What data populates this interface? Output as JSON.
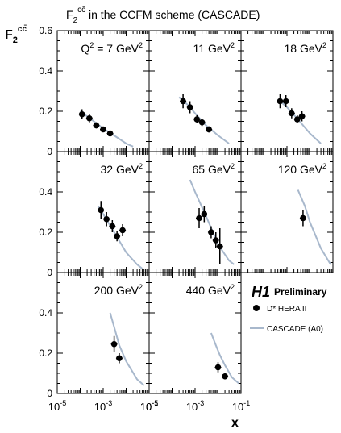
{
  "chart_data": {
    "type": "scatter",
    "title": "F2cc̄ in the CCFM scheme (CASCADE)",
    "title_parts": {
      "main": "F",
      "sub": "2",
      "sup": "cc̄",
      "rest": " in the CCFM scheme (CASCADE)"
    },
    "ylabel": {
      "main": "F",
      "sub": "2",
      "sup": "cc̄"
    },
    "xlabel": "x",
    "x_scale": "log",
    "xlim": [
      1e-05,
      0.1
    ],
    "ylim": [
      0,
      0.6
    ],
    "y_ticks": [
      "0",
      "0.2",
      "0.4",
      "0.6"
    ],
    "x_tick_labels": [
      {
        "base": "10",
        "exp": "-5",
        "value": 1e-05
      },
      {
        "base": "10",
        "exp": "-3",
        "value": 0.001
      },
      {
        "base": "10",
        "exp": "-1",
        "value": 0.1
      }
    ],
    "legend": {
      "logo": "H1",
      "status": "Preliminary",
      "data_label": "D* HERA II",
      "model_label": "CASCADE (A0)",
      "model_color": "#a8b8cc"
    },
    "panels": [
      {
        "q2": "Q² = 7 GeV²",
        "label_parts": [
          "Q",
          "2",
          " = 7 GeV",
          "2"
        ],
        "data": [
          {
            "x": 0.00012,
            "y": 0.185,
            "err": 0.025
          },
          {
            "x": 0.00025,
            "y": 0.165,
            "err": 0.02
          },
          {
            "x": 0.0005,
            "y": 0.13,
            "err": 0.015
          },
          {
            "x": 0.001,
            "y": 0.11,
            "err": 0.013
          },
          {
            "x": 0.002,
            "y": 0.09,
            "err": 0.012
          }
        ],
        "model": [
          {
            "x": 0.0001,
            "y": 0.2
          },
          {
            "x": 0.0003,
            "y": 0.16
          },
          {
            "x": 0.001,
            "y": 0.115
          },
          {
            "x": 0.003,
            "y": 0.08
          },
          {
            "x": 0.01,
            "y": 0.04
          },
          {
            "x": 0.02,
            "y": 0.025
          }
        ]
      },
      {
        "q2": "11 GeV²",
        "label_parts": [
          "",
          "",
          "11 GeV",
          "2"
        ],
        "data": [
          {
            "x": 0.0003,
            "y": 0.25,
            "err": 0.035
          },
          {
            "x": 0.0006,
            "y": 0.22,
            "err": 0.03
          },
          {
            "x": 0.0012,
            "y": 0.16,
            "err": 0.02
          },
          {
            "x": 0.002,
            "y": 0.145,
            "err": 0.018
          },
          {
            "x": 0.004,
            "y": 0.11,
            "err": 0.015
          }
        ],
        "model": [
          {
            "x": 0.0002,
            "y": 0.27
          },
          {
            "x": 0.0005,
            "y": 0.23
          },
          {
            "x": 0.001,
            "y": 0.19
          },
          {
            "x": 0.003,
            "y": 0.13
          },
          {
            "x": 0.01,
            "y": 0.08
          },
          {
            "x": 0.03,
            "y": 0.04
          }
        ]
      },
      {
        "q2": "18 GeV²",
        "label_parts": [
          "",
          "",
          "18 GeV",
          "2"
        ],
        "data": [
          {
            "x": 0.0005,
            "y": 0.25,
            "err": 0.035
          },
          {
            "x": 0.0009,
            "y": 0.25,
            "err": 0.03
          },
          {
            "x": 0.0016,
            "y": 0.19,
            "err": 0.025
          },
          {
            "x": 0.0028,
            "y": 0.16,
            "err": 0.02
          },
          {
            "x": 0.0045,
            "y": 0.175,
            "err": 0.025
          }
        ],
        "model": [
          {
            "x": 0.0004,
            "y": 0.26
          },
          {
            "x": 0.001,
            "y": 0.22
          },
          {
            "x": 0.003,
            "y": 0.16
          },
          {
            "x": 0.01,
            "y": 0.09
          },
          {
            "x": 0.03,
            "y": 0.04
          }
        ]
      },
      {
        "q2": "32 GeV²",
        "label_parts": [
          "",
          "",
          "32 GeV",
          "2"
        ],
        "data": [
          {
            "x": 0.0008,
            "y": 0.31,
            "err": 0.045
          },
          {
            "x": 0.0014,
            "y": 0.265,
            "err": 0.035
          },
          {
            "x": 0.0025,
            "y": 0.23,
            "err": 0.03
          },
          {
            "x": 0.004,
            "y": 0.18,
            "err": 0.025
          },
          {
            "x": 0.007,
            "y": 0.21,
            "err": 0.03
          }
        ],
        "model": [
          {
            "x": 0.0006,
            "y": 0.33
          },
          {
            "x": 0.001,
            "y": 0.29
          },
          {
            "x": 0.003,
            "y": 0.2
          },
          {
            "x": 0.01,
            "y": 0.1
          },
          {
            "x": 0.03,
            "y": 0.04
          },
          {
            "x": 0.05,
            "y": 0.02
          }
        ]
      },
      {
        "q2": "65 GeV²",
        "label_parts": [
          "",
          "",
          "65 GeV",
          "2"
        ],
        "data": [
          {
            "x": 0.0015,
            "y": 0.27,
            "err": 0.05
          },
          {
            "x": 0.0025,
            "y": 0.29,
            "err": 0.04
          },
          {
            "x": 0.005,
            "y": 0.2,
            "err": 0.03
          },
          {
            "x": 0.008,
            "y": 0.16,
            "err": 0.04
          },
          {
            "x": 0.012,
            "y": 0.13,
            "err": 0.09
          }
        ],
        "model": [
          {
            "x": 0.0006,
            "y": 0.46
          },
          {
            "x": 0.001,
            "y": 0.4
          },
          {
            "x": 0.003,
            "y": 0.28
          },
          {
            "x": 0.01,
            "y": 0.14
          },
          {
            "x": 0.03,
            "y": 0.06
          },
          {
            "x": 0.05,
            "y": 0.04
          }
        ]
      },
      {
        "q2": "120 GeV²",
        "label_parts": [
          "",
          "",
          "120 GeV",
          "2"
        ],
        "data": [
          {
            "x": 0.005,
            "y": 0.27,
            "err": 0.04
          }
        ],
        "model": [
          {
            "x": 0.003,
            "y": 0.41
          },
          {
            "x": 0.006,
            "y": 0.33
          },
          {
            "x": 0.01,
            "y": 0.25
          },
          {
            "x": 0.03,
            "y": 0.12
          },
          {
            "x": 0.08,
            "y": 0.04
          }
        ]
      },
      {
        "q2": "200 GeV²",
        "label_parts": [
          "",
          "",
          "200 GeV",
          "2"
        ],
        "data": [
          {
            "x": 0.003,
            "y": 0.245,
            "err": 0.04
          },
          {
            "x": 0.005,
            "y": 0.175,
            "err": 0.025
          }
        ],
        "model": [
          {
            "x": 0.002,
            "y": 0.4
          },
          {
            "x": 0.003,
            "y": 0.33
          },
          {
            "x": 0.005,
            "y": 0.24
          },
          {
            "x": 0.01,
            "y": 0.16
          },
          {
            "x": 0.03,
            "y": 0.07
          },
          {
            "x": 0.06,
            "y": 0.04
          }
        ]
      },
      {
        "q2": "440 GeV²",
        "label_parts": [
          "",
          "",
          "440 GeV",
          "2"
        ],
        "data": [
          {
            "x": 0.01,
            "y": 0.13,
            "err": 0.025
          },
          {
            "x": 0.02,
            "y": 0.085,
            "err": 0.015
          }
        ],
        "model": [
          {
            "x": 0.005,
            "y": 0.3
          },
          {
            "x": 0.008,
            "y": 0.24
          },
          {
            "x": 0.012,
            "y": 0.19
          },
          {
            "x": 0.02,
            "y": 0.14
          },
          {
            "x": 0.04,
            "y": 0.08
          },
          {
            "x": 0.08,
            "y": 0.05
          }
        ]
      }
    ]
  }
}
